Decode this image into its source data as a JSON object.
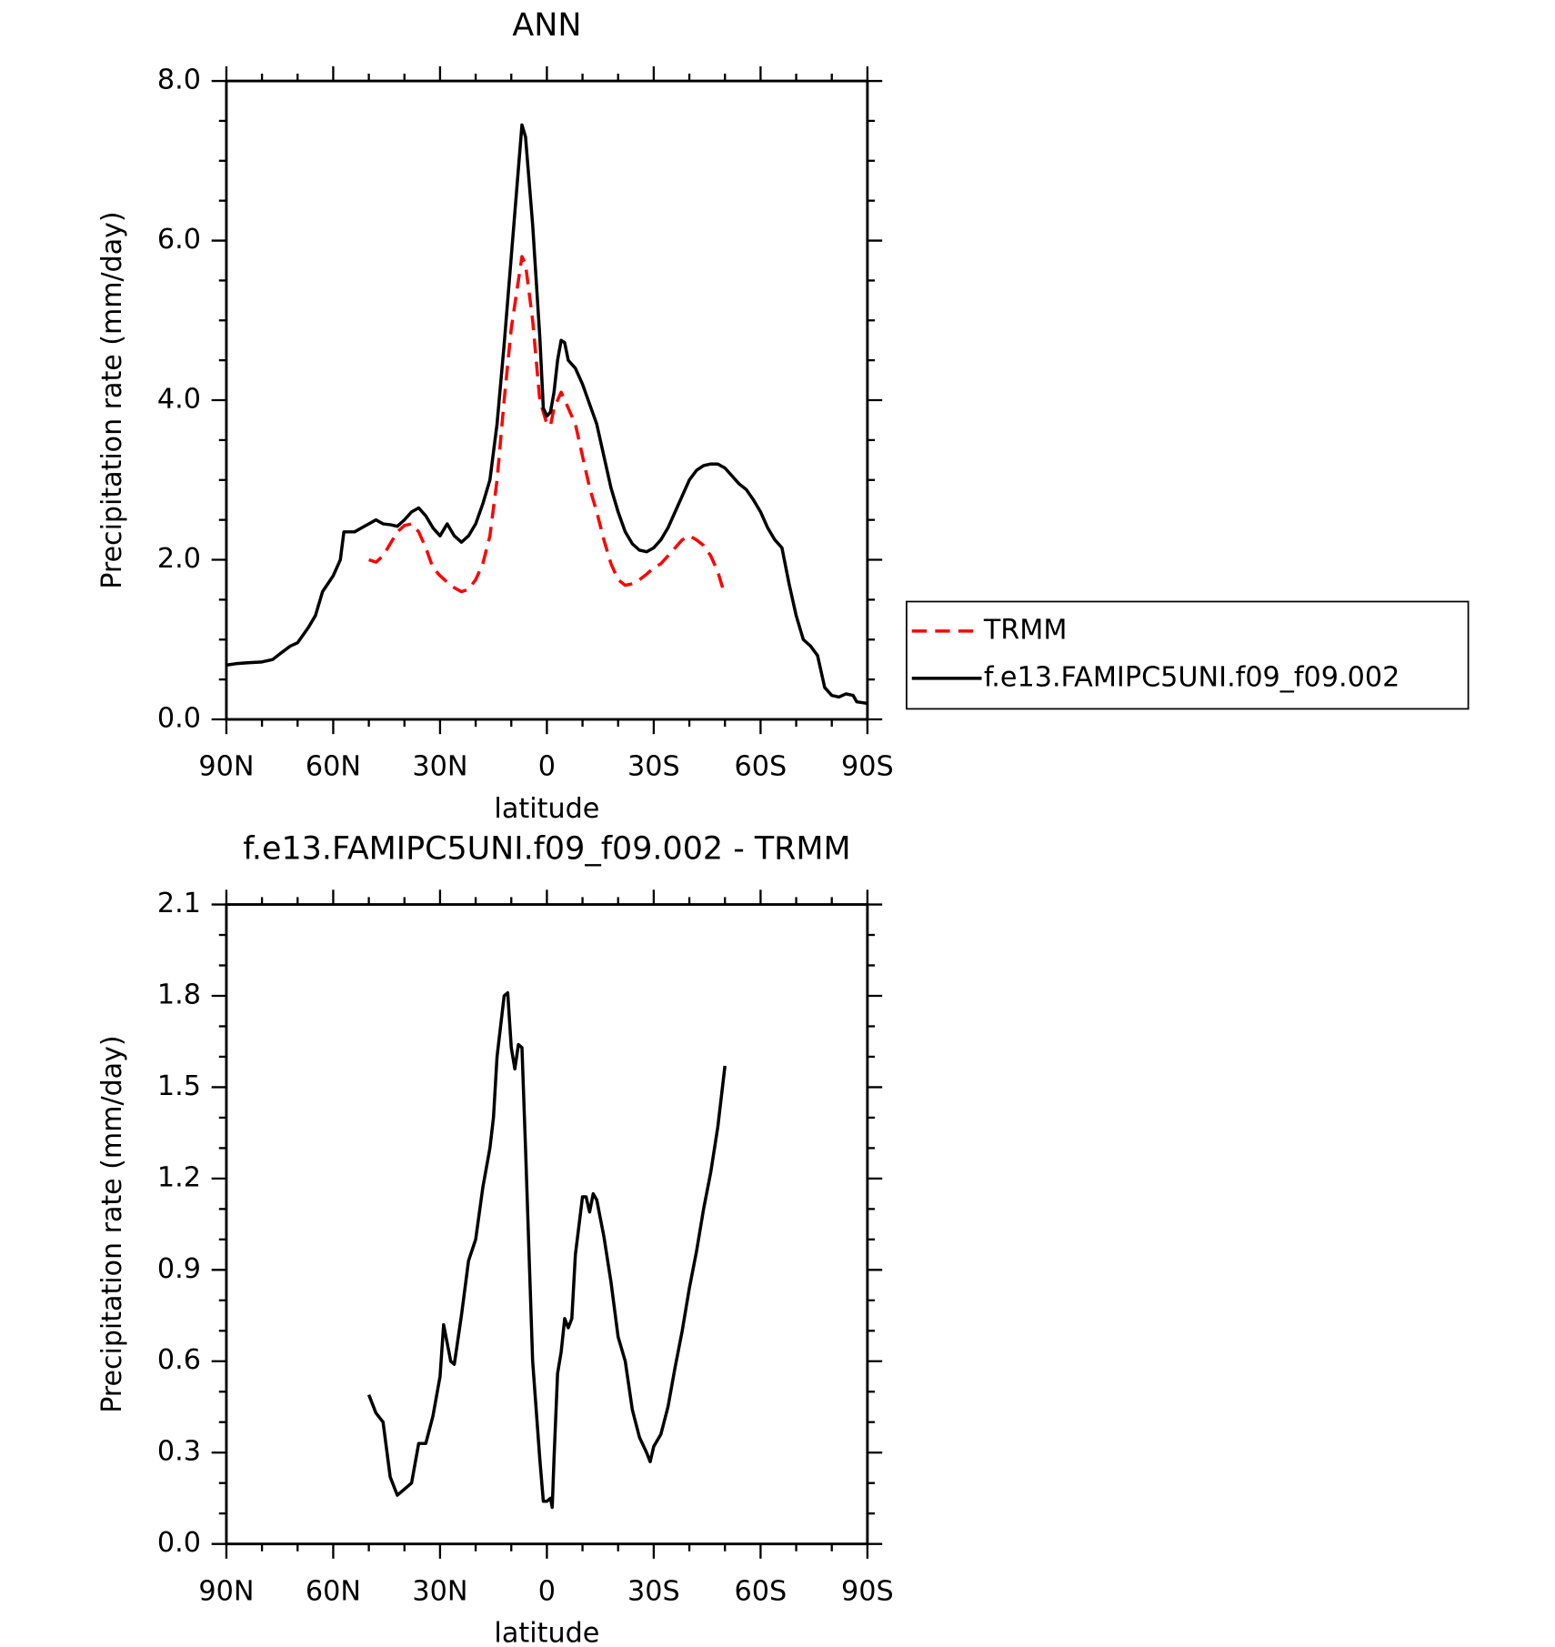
{
  "chart_data": [
    {
      "type": "line",
      "title": "ANN",
      "xlabel": "latitude",
      "ylabel": "Precipitation rate (mm/day)",
      "xlim": [
        90,
        -90
      ],
      "xticks": [
        {
          "value": 90,
          "label": "90N"
        },
        {
          "value": 60,
          "label": "60N"
        },
        {
          "value": 30,
          "label": "30N"
        },
        0,
        {
          "value": -30,
          "label": "30S"
        },
        {
          "value": -60,
          "label": "60S"
        },
        {
          "value": -90,
          "label": "90S"
        }
      ],
      "xminorticks": [
        80,
        70,
        50,
        40,
        20,
        10,
        -10,
        -20,
        -40,
        -50,
        -70,
        -80
      ],
      "ylim": [
        0,
        8
      ],
      "yticks": [
        {
          "value": 0,
          "label": "0.0"
        },
        {
          "value": 2,
          "label": "2.0"
        },
        {
          "value": 4,
          "label": "4.0"
        },
        {
          "value": 6,
          "label": "6.0"
        },
        {
          "value": 8,
          "label": "8.0"
        }
      ],
      "yminorticks": [
        0.5,
        1,
        1.5,
        2.5,
        3,
        3.5,
        4.5,
        5,
        5.5,
        6.5,
        7,
        7.5
      ],
      "legend": "right",
      "series": [
        {
          "name": "TRMM",
          "color": "#ff0000",
          "dashed": true,
          "x": [
            50,
            48,
            46,
            44,
            42,
            40,
            38,
            36,
            34,
            32,
            30,
            28,
            26,
            24,
            22,
            20,
            18,
            16,
            14,
            12,
            10,
            8,
            7,
            6,
            4,
            2,
            0,
            -1,
            -2,
            -4,
            -6,
            -8,
            -10,
            -12,
            -14,
            -16,
            -18,
            -20,
            -22,
            -24,
            -26,
            -28,
            -30,
            -32,
            -34,
            -36,
            -38,
            -40,
            -42,
            -44,
            -46,
            -48,
            -50
          ],
          "values": [
            2.0,
            1.97,
            2.05,
            2.2,
            2.35,
            2.43,
            2.45,
            2.35,
            2.15,
            1.9,
            1.8,
            1.72,
            1.65,
            1.6,
            1.63,
            1.75,
            1.95,
            2.3,
            3.0,
            4.0,
            4.9,
            5.5,
            5.8,
            5.7,
            5.0,
            4.0,
            3.7,
            3.68,
            3.9,
            4.1,
            3.9,
            3.7,
            3.3,
            2.9,
            2.6,
            2.25,
            1.95,
            1.75,
            1.68,
            1.7,
            1.75,
            1.82,
            1.9,
            1.95,
            2.05,
            2.15,
            2.25,
            2.3,
            2.25,
            2.18,
            2.05,
            1.85,
            1.55
          ]
        },
        {
          "name": "f.e13.FAMIPC5UNI.f09_f09.002",
          "color": "#000000",
          "dashed": false,
          "x": [
            90,
            87,
            84,
            80,
            77,
            75,
            72,
            70,
            67,
            65,
            63,
            60,
            58,
            57,
            54,
            52,
            50,
            48,
            46,
            44,
            42,
            40,
            38,
            36,
            34,
            32,
            30,
            28,
            26,
            24,
            22,
            20,
            18,
            16,
            14,
            12,
            10,
            8,
            7,
            6,
            4,
            2,
            1,
            0,
            -1,
            -2,
            -3,
            -4,
            -5,
            -6,
            -8,
            -10,
            -12,
            -14,
            -16,
            -18,
            -20,
            -22,
            -24,
            -26,
            -28,
            -30,
            -32,
            -34,
            -36,
            -38,
            -40,
            -42,
            -44,
            -46,
            -48,
            -50,
            -52,
            -54,
            -56,
            -58,
            -60,
            -62,
            -64,
            -66,
            -68,
            -70,
            -72,
            -74,
            -76,
            -78,
            -80,
            -82,
            -84,
            -86,
            -87,
            -90
          ],
          "values": [
            0.68,
            0.7,
            0.71,
            0.72,
            0.75,
            0.82,
            0.92,
            0.96,
            1.15,
            1.3,
            1.6,
            1.8,
            2.0,
            2.35,
            2.35,
            2.4,
            2.45,
            2.5,
            2.45,
            2.44,
            2.42,
            2.5,
            2.6,
            2.65,
            2.55,
            2.4,
            2.3,
            2.45,
            2.3,
            2.22,
            2.3,
            2.45,
            2.7,
            3.0,
            3.7,
            4.7,
            5.8,
            6.9,
            7.45,
            7.3,
            6.2,
            4.8,
            3.9,
            3.8,
            3.85,
            4.1,
            4.5,
            4.75,
            4.72,
            4.5,
            4.4,
            4.2,
            3.95,
            3.7,
            3.3,
            2.9,
            2.6,
            2.35,
            2.2,
            2.12,
            2.1,
            2.15,
            2.25,
            2.4,
            2.6,
            2.8,
            3.0,
            3.12,
            3.18,
            3.2,
            3.2,
            3.15,
            3.05,
            2.95,
            2.88,
            2.75,
            2.6,
            2.4,
            2.25,
            2.15,
            1.7,
            1.3,
            1.0,
            0.92,
            0.8,
            0.4,
            0.3,
            0.28,
            0.32,
            0.3,
            0.22,
            0.2
          ]
        }
      ]
    },
    {
      "type": "line",
      "title": "f.e13.FAMIPC5UNI.f09_f09.002 - TRMM",
      "xlabel": "latitude",
      "ylabel": "Precipitation rate (mm/day)",
      "xlim": [
        90,
        -90
      ],
      "xticks": [
        {
          "value": 90,
          "label": "90N"
        },
        {
          "value": 60,
          "label": "60N"
        },
        {
          "value": 30,
          "label": "30N"
        },
        0,
        {
          "value": -30,
          "label": "30S"
        },
        {
          "value": -60,
          "label": "60S"
        },
        {
          "value": -90,
          "label": "90S"
        }
      ],
      "xminorticks": [
        80,
        70,
        50,
        40,
        20,
        10,
        -10,
        -20,
        -40,
        -50,
        -70,
        -80
      ],
      "ylim": [
        0,
        2.1
      ],
      "yticks": [
        {
          "value": 0,
          "label": "0.0"
        },
        0.3,
        0.6,
        0.9,
        1.2,
        1.5,
        1.8,
        2.1
      ],
      "yminorticks": [
        0.1,
        0.2,
        0.4,
        0.5,
        0.7,
        0.8,
        1.0,
        1.1,
        1.3,
        1.4,
        1.6,
        1.7,
        1.9,
        2.0
      ],
      "series": [
        {
          "color": "#000000",
          "dashed": false,
          "x": [
            50,
            48,
            46,
            44,
            42,
            40,
            38,
            36,
            34,
            32,
            30,
            29,
            27,
            26,
            24,
            22,
            20,
            18,
            16,
            15,
            14,
            12,
            11,
            10,
            9,
            8,
            7,
            6,
            4,
            2,
            1,
            0,
            -1,
            -1.5,
            -2,
            -3,
            -4,
            -5,
            -6,
            -7,
            -8,
            -10,
            -11,
            -12,
            -13,
            -14,
            -16,
            -18,
            -20,
            -22,
            -24,
            -26,
            -28,
            -29,
            -30,
            -32,
            -34,
            -36,
            -38,
            -40,
            -42,
            -44,
            -46,
            -48,
            -50
          ],
          "values": [
            0.49,
            0.43,
            0.4,
            0.22,
            0.16,
            0.18,
            0.2,
            0.33,
            0.33,
            0.42,
            0.55,
            0.72,
            0.6,
            0.59,
            0.75,
            0.93,
            1.0,
            1.17,
            1.3,
            1.4,
            1.6,
            1.8,
            1.81,
            1.63,
            1.56,
            1.64,
            1.63,
            1.3,
            0.6,
            0.28,
            0.14,
            0.14,
            0.15,
            0.12,
            0.28,
            0.56,
            0.63,
            0.74,
            0.71,
            0.74,
            0.95,
            1.14,
            1.14,
            1.09,
            1.15,
            1.13,
            1.01,
            0.86,
            0.68,
            0.6,
            0.44,
            0.35,
            0.3,
            0.27,
            0.32,
            0.36,
            0.45,
            0.58,
            0.7,
            0.84,
            0.96,
            1.1,
            1.22,
            1.37,
            1.57
          ]
        }
      ]
    }
  ]
}
